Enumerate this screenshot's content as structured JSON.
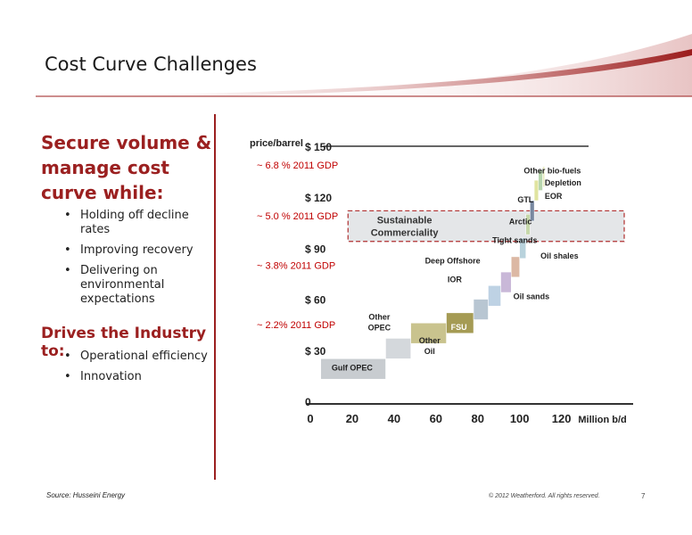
{
  "slide": {
    "title": "Cost Curve Challenges",
    "heading1": "Secure volume & manage cost curve while:",
    "bullets1": [
      "Holding off decline rates",
      "Improving recovery",
      "Delivering on environmental expectations"
    ],
    "heading2": "Drives the Industry to:",
    "bullets2": [
      "Operational efficiency",
      "Innovation"
    ],
    "source": "Source: Husseini Energy",
    "copyright": "© 2012 Weatherford. All rights reserved.",
    "page": "7",
    "accent_color": "#9b2020"
  },
  "chart_data": {
    "type": "bar",
    "ylabel": "price/barrel",
    "xlabel": "Million b/d",
    "y_ticks": [
      "0",
      "$ 30",
      "$ 60",
      "$ 90",
      "$ 120",
      "$ 150"
    ],
    "x_ticks": [
      "0",
      "20",
      "40",
      "60",
      "80",
      "100",
      "120"
    ],
    "xlim": [
      0,
      150
    ],
    "ylim": [
      0,
      150
    ],
    "grid": false,
    "segments": [
      {
        "label": "Gulf OPEC",
        "x_start": 5,
        "x_end": 36,
        "y": 25,
        "color": "#c8ccd0"
      },
      {
        "label": "Other OPEC",
        "x_start": 36,
        "x_end": 48,
        "y": 37,
        "color": "#d4d8dc"
      },
      {
        "label": "Other Oil",
        "x_start": 48,
        "x_end": 65,
        "y": 46,
        "color": "#c9c38e"
      },
      {
        "label": "FSU",
        "x_start": 65,
        "x_end": 78,
        "y": 52,
        "color": "#a59b54"
      },
      {
        "label": "IOR",
        "x_start": 78,
        "x_end": 85,
        "y": 60,
        "color": "#b8c6d2"
      },
      {
        "label": "Deep Offshore",
        "x_start": 85,
        "x_end": 91,
        "y": 68,
        "color": "#bed2e4"
      },
      {
        "label": "Oil sands",
        "x_start": 91,
        "x_end": 96,
        "y": 76,
        "color": "#c9b8d8"
      },
      {
        "label": "Tight sands",
        "x_start": 96,
        "x_end": 100,
        "y": 85,
        "color": "#dcb8a4"
      },
      {
        "label": "Arctic",
        "x_start": 100,
        "x_end": 103,
        "y": 96,
        "color": "#b8d2dc"
      },
      {
        "label": "GTL",
        "x_start": 103,
        "x_end": 105,
        "y": 110,
        "color": "#c6d8aa"
      },
      {
        "label": "Oil shales",
        "x_start": 105,
        "x_end": 107,
        "y": 118,
        "color": "#7888a0"
      },
      {
        "label": "Other bio-fuels",
        "x_start": 107,
        "x_end": 109,
        "y": 130,
        "color": "#e0e4a0"
      },
      {
        "label": "Depletion",
        "x_start": 109,
        "x_end": 111,
        "y": 136,
        "color": "#b7d6ae"
      },
      {
        "label": "EOR",
        "x_start": 111,
        "x_end": 112,
        "y": 138,
        "color": "#e8ecc0"
      }
    ],
    "gdp_annotations": [
      "~ 6.8 % 2011 GDP",
      "~ 5.0 % 2011 GDP",
      "~ 3.8% 2011 GDP",
      "~ 2.2% 2011 GDP"
    ],
    "gdp_levels": [
      137,
      107,
      78,
      43
    ],
    "annotation_color": "#c00000",
    "band": {
      "label_line1": "Sustainable",
      "label_line2": "Commerciality",
      "y_low": 94,
      "y_high": 112
    }
  }
}
